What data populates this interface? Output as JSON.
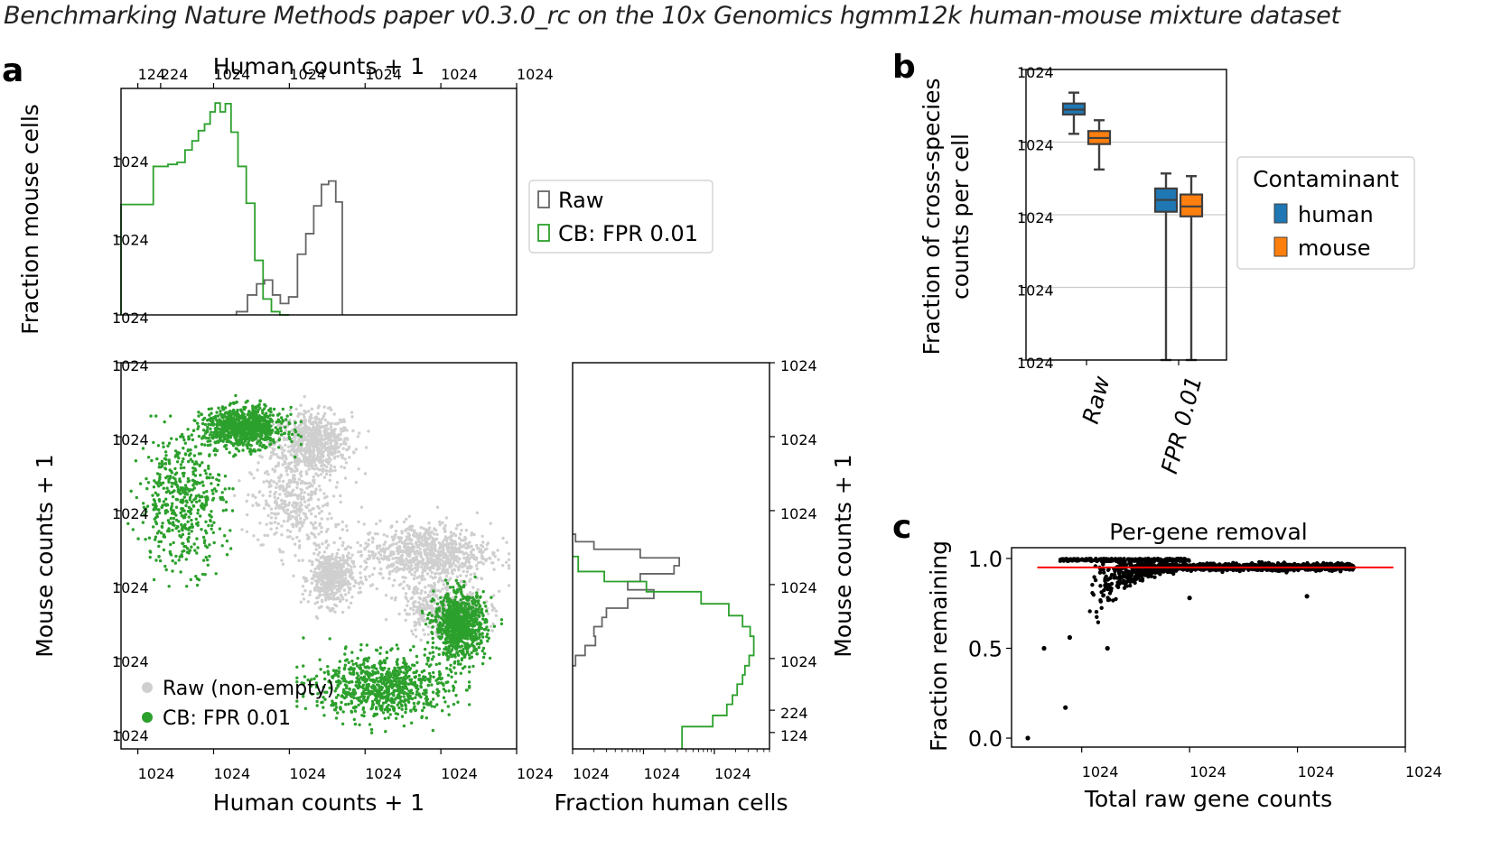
{
  "figure_title": "Benchmarking Nature Methods paper v0.3.0_rc on the 10x Genomics hgmm12k human-mouse mixture dataset",
  "panel_labels": [
    "a",
    "b",
    "c"
  ],
  "chart_data": [
    {
      "id": "a-top",
      "type": "line",
      "subtype": "step-histogram",
      "xlabel": "Human counts + 1",
      "ylabel": "Fraction mouse cells",
      "xscale": "log",
      "yscale": "log",
      "xlim": [
        0.6,
        100000
      ],
      "ylim": [
        0.0001,
        0.08
      ],
      "xticks": [
        {
          "v": 1,
          "label": "1"
        },
        {
          "v": 2,
          "label": "2"
        },
        {
          "v": 10,
          "label": "10",
          "exp": "1"
        },
        {
          "v": 100,
          "label": "10",
          "exp": "2"
        },
        {
          "v": 1000,
          "label": "10",
          "exp": "3"
        },
        {
          "v": 10000,
          "label": "10",
          "exp": "4"
        },
        {
          "v": 100000,
          "label": "10",
          "exp": "5"
        }
      ],
      "yticks": [
        {
          "v": 0.0001,
          "label": "10",
          "exp": "−4"
        },
        {
          "v": 0.001,
          "label": "10",
          "exp": "−3"
        },
        {
          "v": 0.01,
          "label": "10",
          "exp": "−2"
        }
      ],
      "legend": {
        "position": "outside-right",
        "entries": [
          "Raw",
          "CB: FPR 0.01"
        ]
      },
      "series": [
        {
          "name": "Raw",
          "color": "#666666",
          "x": [
            20,
            28,
            37,
            47,
            60,
            76,
            98,
            128,
            165,
            210,
            265,
            330,
            410,
            500
          ],
          "y": [
            0.00011,
            0.00018,
            0.00025,
            0.00028,
            0.00018,
            0.00014,
            0.00017,
            0.0006,
            0.0011,
            0.0025,
            0.0047,
            0.0052,
            0.0028,
            0.0001
          ]
        },
        {
          "name": "CB: FPR 0.01",
          "color": "#2ca02c",
          "x": [
            0.6,
            1.0,
            1.6,
            2.5,
            3.3,
            4.2,
            5.2,
            6.3,
            7.6,
            9.0,
            10.5,
            12.2,
            14.3,
            17,
            21,
            27,
            35,
            45,
            58,
            75,
            100
          ],
          "y": [
            0.0026,
            0.0026,
            0.008,
            0.0085,
            0.009,
            0.013,
            0.017,
            0.023,
            0.028,
            0.04,
            0.052,
            0.04,
            0.051,
            0.022,
            0.008,
            0.0027,
            0.0005,
            0.00016,
            0.00011,
            0.0001,
            0.0001
          ]
        }
      ]
    },
    {
      "id": "a-main",
      "type": "scatter",
      "xlabel": "Human counts + 1",
      "ylabel": "Mouse counts + 1",
      "xscale": "log",
      "yscale": "log",
      "xlim": [
        0.6,
        100000
      ],
      "ylim": [
        0.6,
        100000
      ],
      "xticks": [
        {
          "v": 1,
          "label": "10",
          "exp": "0"
        },
        {
          "v": 10,
          "label": "10",
          "exp": "1"
        },
        {
          "v": 100,
          "label": "10",
          "exp": "2"
        },
        {
          "v": 1000,
          "label": "10",
          "exp": "3"
        },
        {
          "v": 10000,
          "label": "10",
          "exp": "4"
        },
        {
          "v": 100000,
          "label": "10",
          "exp": "5"
        }
      ],
      "yticks": [
        {
          "v": 1,
          "label": "10",
          "exp": "0"
        },
        {
          "v": 10,
          "label": "10",
          "exp": "1"
        },
        {
          "v": 100,
          "label": "10",
          "exp": "2"
        },
        {
          "v": 1000,
          "label": "10",
          "exp": "3"
        },
        {
          "v": 10000,
          "label": "10",
          "exp": "4"
        },
        {
          "v": 100000,
          "label": "10",
          "exp": "5"
        }
      ],
      "legend": {
        "position": "lower-left",
        "entries": [
          "Raw (non-empty)",
          "CB: FPR 0.01"
        ]
      },
      "series": [
        {
          "name": "Raw (non-empty)",
          "color": "#cfcfcf",
          "clusters": [
            {
              "x": [
                60,
                700
              ],
              "y": [
                3000,
                22000
              ],
              "n": 700
            },
            {
              "x": [
                30,
                400
              ],
              "y": [
                300,
                5000
              ],
              "n": 350
            },
            {
              "x": [
                180,
                700
              ],
              "y": [
                50,
                300
              ],
              "n": 500
            },
            {
              "x": [
                800,
                50000
              ],
              "y": [
                100,
                700
              ],
              "n": 800
            },
            {
              "x": [
                3000,
                40000
              ],
              "y": [
                20,
                120
              ],
              "n": 400
            }
          ]
        },
        {
          "name": "CB: FPR 0.01",
          "color": "#2ca02c",
          "clusters": [
            {
              "x": [
                7,
                90
              ],
              "y": [
                7000,
                25000
              ],
              "n": 900
            },
            {
              "x": [
                1,
                15
              ],
              "y": [
                150,
                12000
              ],
              "n": 500
            },
            {
              "x": [
                8000,
                40000
              ],
              "y": [
                10,
                80
              ],
              "n": 900
            },
            {
              "x": [
                200,
                15000
              ],
              "y": [
                1.5,
                12
              ],
              "n": 800
            }
          ]
        }
      ]
    },
    {
      "id": "a-right",
      "type": "line",
      "subtype": "step-histogram",
      "xlabel": "Fraction human cells",
      "ylabel": "Mouse counts + 1",
      "xscale": "log",
      "yscale": "log",
      "xlim": [
        0.0001,
        0.06
      ],
      "ylim": [
        0.6,
        100000
      ],
      "xticks": [
        {
          "v": 0.0001,
          "label": "10",
          "exp": "−4"
        },
        {
          "v": 0.001,
          "label": "10",
          "exp": "−3"
        },
        {
          "v": 0.01,
          "label": "10",
          "exp": "−2"
        }
      ],
      "yticks": [
        {
          "v": 1,
          "label": "1"
        },
        {
          "v": 2,
          "label": "2"
        },
        {
          "v": 10,
          "label": "10",
          "exp": "1"
        },
        {
          "v": 100,
          "label": "10",
          "exp": "2"
        },
        {
          "v": 1000,
          "label": "10",
          "exp": "3"
        },
        {
          "v": 10000,
          "label": "10",
          "exp": "4"
        },
        {
          "v": 100000,
          "label": "10",
          "exp": "5"
        }
      ],
      "series": [
        {
          "name": "Raw",
          "color": "#666666",
          "y": [
            480,
            380,
            300,
            230,
            180,
            140,
            110,
            85,
            65,
            48,
            36,
            27,
            20,
            15,
            11,
            8
          ],
          "x": [
            0.00011,
            0.0002,
            0.0009,
            0.0032,
            0.0027,
            0.0009,
            0.0006,
            0.0014,
            0.0006,
            0.0003,
            0.00026,
            0.0002,
            0.00021,
            0.00015,
            0.00011,
            0.0001
          ]
        },
        {
          "name": "CB: FPR 0.01",
          "color": "#2ca02c",
          "y": [
            240,
            150,
            110,
            80,
            55,
            38,
            27,
            20,
            15,
            11,
            8,
            6,
            4.5,
            3.2,
            2.4,
            1.7,
            1.2,
            0.6
          ],
          "x": [
            0.00012,
            0.00028,
            0.0011,
            0.0065,
            0.016,
            0.025,
            0.032,
            0.036,
            0.036,
            0.031,
            0.027,
            0.025,
            0.021,
            0.018,
            0.015,
            0.0095,
            0.0035,
            0.0035
          ]
        }
      ]
    },
    {
      "id": "b",
      "type": "box",
      "ylabel": "Fraction of cross-species\ncounts per cell",
      "yscale": "log",
      "ylim": [
        1e-05,
        0.1
      ],
      "grid": "y",
      "categories": [
        "Raw",
        "FPR 0.01"
      ],
      "yticks": [
        {
          "v": 1e-05,
          "label": "10",
          "exp": "−5"
        },
        {
          "v": 0.0001,
          "label": "10",
          "exp": "−4"
        },
        {
          "v": 0.001,
          "label": "10",
          "exp": "−3"
        },
        {
          "v": 0.01,
          "label": "10",
          "exp": "−2"
        },
        {
          "v": 0.1,
          "label": "10",
          "exp": "−1"
        }
      ],
      "legend": {
        "title": "Contaminant",
        "position": "outside-right",
        "entries": [
          "human",
          "mouse"
        ]
      },
      "series": [
        {
          "name": "human",
          "color": "#1f77b4",
          "boxes": [
            {
              "whislo": 0.013,
              "q1": 0.024,
              "med": 0.028,
              "q3": 0.034,
              "whishi": 0.048
            },
            {
              "whislo": 1e-05,
              "q1": 0.0011,
              "med": 0.0016,
              "q3": 0.0023,
              "whishi": 0.0037
            }
          ]
        },
        {
          "name": "mouse",
          "color": "#ff7f0e",
          "boxes": [
            {
              "whislo": 0.0042,
              "q1": 0.0094,
              "med": 0.0114,
              "q3": 0.0142,
              "whishi": 0.02
            },
            {
              "whislo": 1e-05,
              "q1": 0.00095,
              "med": 0.0013,
              "q3": 0.0019,
              "whishi": 0.0034
            }
          ]
        }
      ]
    },
    {
      "id": "c",
      "type": "scatter",
      "title": "Per-gene removal",
      "xlabel": "Total raw gene counts",
      "ylabel": "Fraction remaining",
      "xscale": "log",
      "xlim": [
        0.5,
        10000000
      ],
      "ylim": [
        -0.05,
        1.06
      ],
      "xticks": [
        {
          "v": 10,
          "label": "10",
          "exp": "1"
        },
        {
          "v": 1000,
          "label": "10",
          "exp": "3"
        },
        {
          "v": 100000,
          "label": "10",
          "exp": "5"
        },
        {
          "v": 10000000,
          "label": "10",
          "exp": "7"
        }
      ],
      "yticks": [
        {
          "v": 0,
          "label": "0.0"
        },
        {
          "v": 0.5,
          "label": "0.5"
        },
        {
          "v": 1,
          "label": "1.0"
        }
      ],
      "reference_line": {
        "y": 0.95,
        "color": "#ff0000"
      },
      "points_examples": [
        {
          "x": 1,
          "y": 0.0
        },
        {
          "x": 2,
          "y": 0.5
        },
        {
          "x": 5,
          "y": 0.17
        },
        {
          "x": 6,
          "y": 0.56
        },
        {
          "x": 30,
          "y": 0.5
        },
        {
          "x": 150000,
          "y": 0.79
        },
        {
          "x": 1000,
          "y": 0.78
        }
      ]
    }
  ]
}
